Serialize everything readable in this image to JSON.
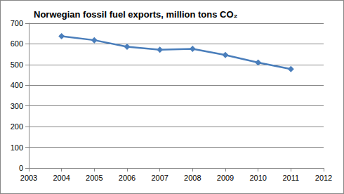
{
  "chart_data": {
    "type": "line",
    "title": "Norwegian fossil fuel exports, million tons CO₂",
    "x": [
      2004,
      2005,
      2006,
      2007,
      2008,
      2009,
      2010,
      2011
    ],
    "values": [
      637,
      618,
      586,
      572,
      576,
      546,
      510,
      478
    ],
    "color": "#4a7ebb",
    "marker": "diamond",
    "xlim": [
      2003,
      2012
    ],
    "xticks": [
      2003,
      2004,
      2005,
      2006,
      2007,
      2008,
      2009,
      2010,
      2011,
      2012
    ],
    "ylim": [
      0,
      700
    ],
    "yticks": [
      0,
      100,
      200,
      300,
      400,
      500,
      600,
      700
    ],
    "grid": true
  }
}
